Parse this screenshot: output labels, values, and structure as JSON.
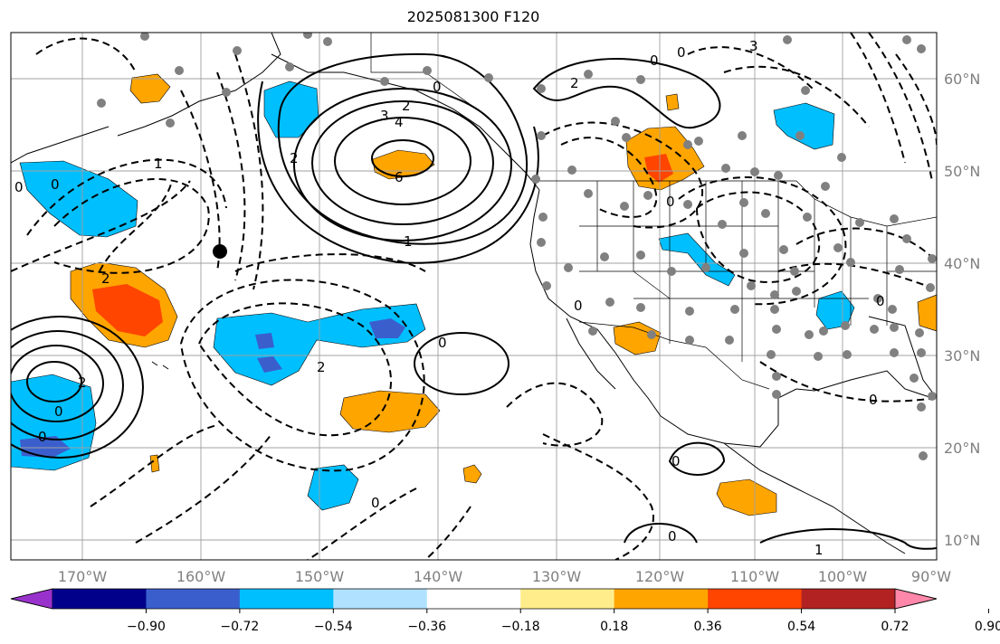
{
  "title": "2025081300 F120",
  "lon_ticks": [
    "170°W",
    "160°W",
    "150°W",
    "140°W",
    "130°W",
    "120°W",
    "110°W",
    "100°W",
    "90°W"
  ],
  "lat_ticks": [
    "60°N",
    "50°N",
    "40°N",
    "30°N",
    "20°N",
    "10°N"
  ],
  "colorbar": {
    "tick_labels": [
      "−0.90",
      "−0.72",
      "−0.54",
      "−0.36",
      "−0.18",
      "0.18",
      "0.36",
      "0.54",
      "0.72",
      "0.90"
    ],
    "colors": [
      "#9932cc",
      "#00008b",
      "#3a5fcd",
      "#00bfff",
      "#b0e2ff",
      "#ffffff",
      "#ffec8b",
      "#ffa500",
      "#ff4500",
      "#b22222",
      "#ff88aa"
    ]
  },
  "contour_labels": [
    "0",
    "0",
    "2",
    "3",
    "4",
    "6",
    "1",
    "2",
    "0",
    "2",
    "3",
    "0",
    "1",
    "2",
    "2",
    "0",
    "0",
    "2",
    "0",
    "0",
    "0",
    "0",
    "0",
    "1",
    "0",
    "0",
    "0",
    "0"
  ],
  "colors": {
    "land_fill": "#ffffff",
    "grid": "#a0a0a0",
    "dot": "#808080"
  }
}
